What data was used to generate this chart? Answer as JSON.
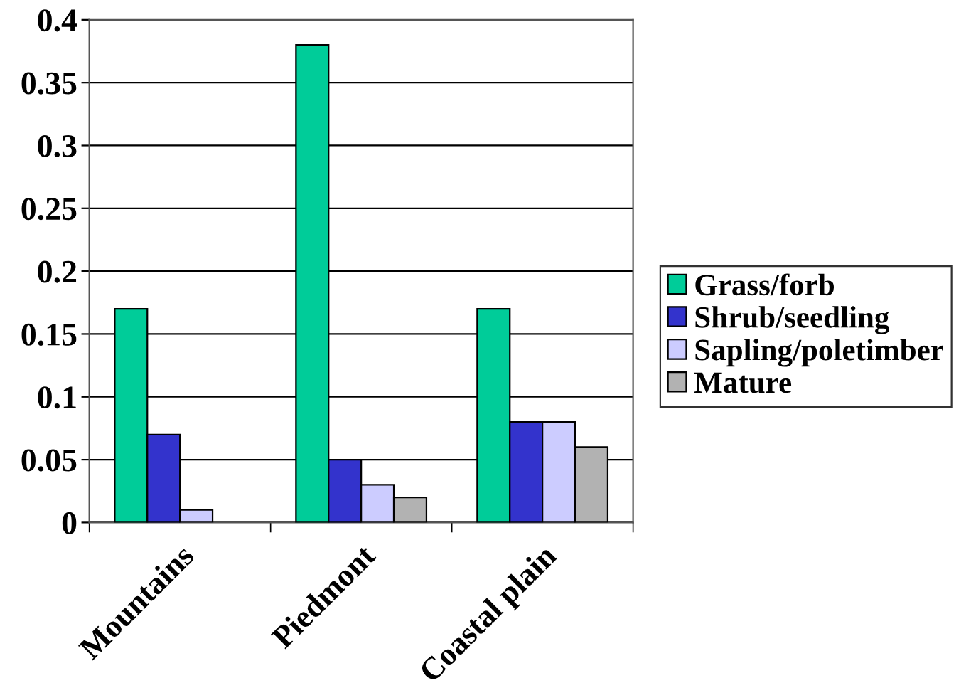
{
  "chart_data": {
    "type": "bar",
    "categories": [
      "Mountains",
      "Piedmont",
      "Coastal plain"
    ],
    "series": [
      {
        "name": "Grass/forb",
        "color": "#00cc99",
        "values": [
          0.17,
          0.38,
          0.17
        ]
      },
      {
        "name": "Shrub/seedling",
        "color": "#3333cc",
        "values": [
          0.07,
          0.05,
          0.08
        ]
      },
      {
        "name": "Sapling/poletimber",
        "color": "#ccccff",
        "values": [
          0.01,
          0.03,
          0.08
        ]
      },
      {
        "name": "Mature",
        "color": "#b2b2b2",
        "values": [
          null,
          0.02,
          0.06
        ]
      }
    ],
    "ylim": [
      0,
      0.4
    ],
    "yticks": [
      0,
      0.05,
      0.1,
      0.15,
      0.2,
      0.25,
      0.3,
      0.35,
      0.4
    ],
    "grid": "y",
    "legend": "right"
  }
}
